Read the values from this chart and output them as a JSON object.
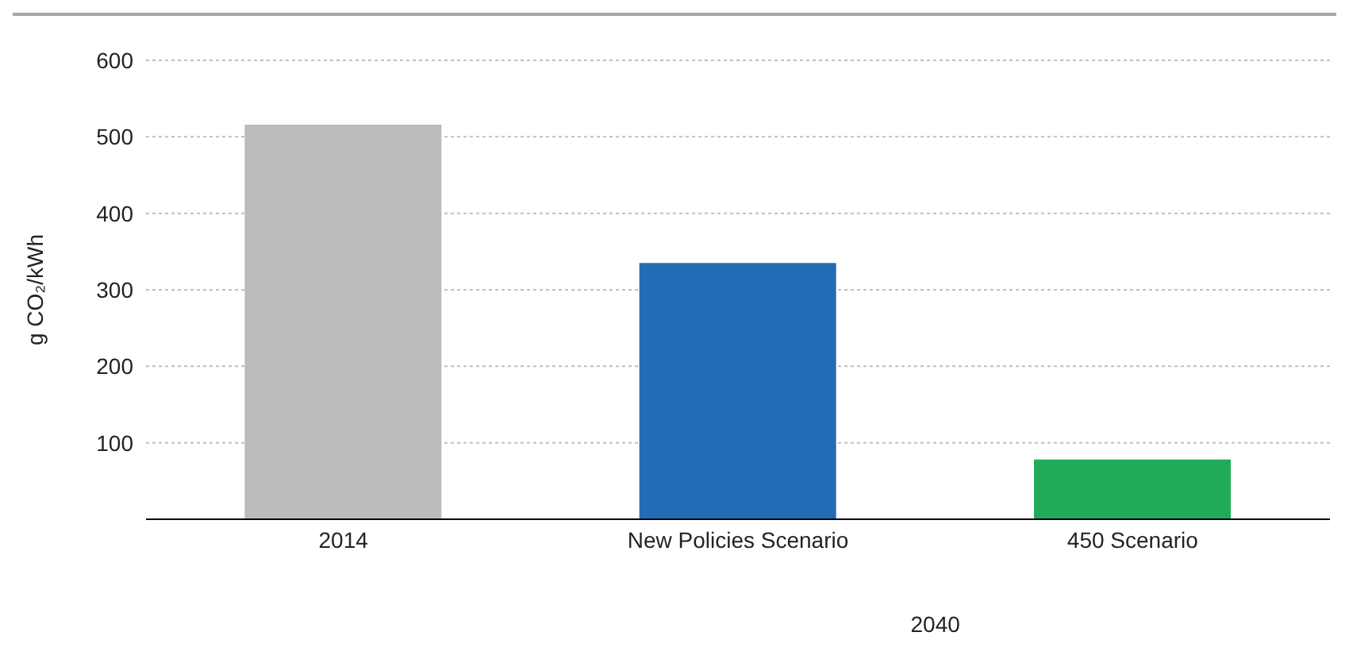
{
  "chart_data": {
    "type": "bar",
    "ylabel": "g CO₂/kWh",
    "categories": [
      "2014",
      "New Policies Scenario",
      "450 Scenario"
    ],
    "values": [
      516,
      335,
      78
    ],
    "colors": [
      "#bbbcbe",
      "#246bb5",
      "#21ab59"
    ],
    "ylim": [
      0,
      600
    ],
    "yticks": [
      100,
      200,
      300,
      400,
      500,
      600
    ],
    "grid": "y",
    "annotations": [
      "2040"
    ]
  }
}
